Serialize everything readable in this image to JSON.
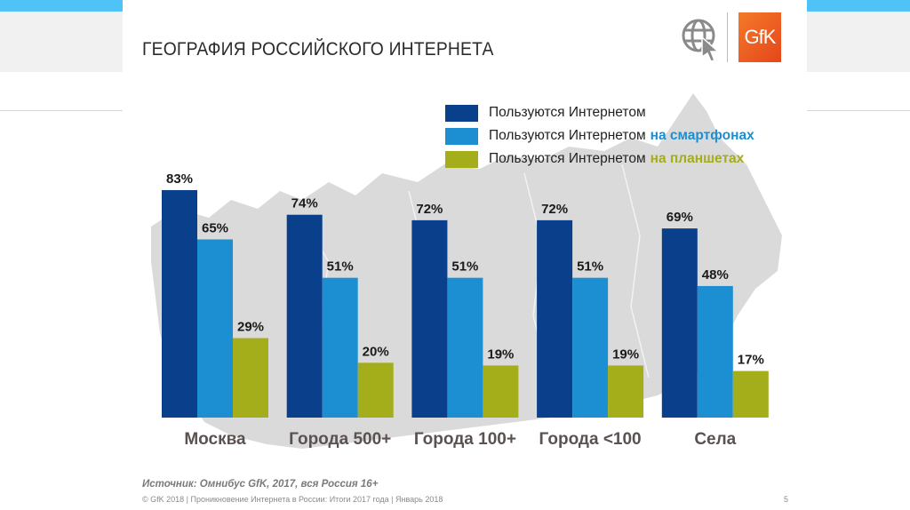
{
  "slide": {
    "title": "ГЕОГРАФИЯ РОССИЙСКОГО ИНТЕРНЕТА",
    "logo_text": "GfK",
    "source": "Источник: Омнибус GfK, 2017, вся Россия 16+",
    "footer": "© GfK 2018 | Проникновение Интернета в России: Итоги 2017 года | Январь 2018",
    "page_number": "5"
  },
  "colors": {
    "internet": "#0a3f8c",
    "smartphones": "#1b8fd2",
    "tablets": "#a4ad1a",
    "accent_bar": "#4fc3f7",
    "gfk_orange": "#ef6325"
  },
  "chart_data": {
    "type": "bar",
    "title": "ГЕОГРАФИЯ РОССИЙСКОГО ИНТЕРНЕТА",
    "xlabel": "",
    "ylabel": "",
    "ylim": [
      0,
      100
    ],
    "grid": false,
    "legend_position": "top-right",
    "categories": [
      "Москва",
      "Города 500+",
      "Города 100+",
      "Города <100",
      "Села"
    ],
    "series": [
      {
        "name": "Пользуются Интернетом",
        "highlight": "",
        "color": "#0a3f8c",
        "values": [
          83,
          74,
          72,
          72,
          69
        ]
      },
      {
        "name": "Пользуются Интернетом",
        "highlight": "на смартфонах",
        "color": "#1b8fd2",
        "values": [
          65,
          51,
          51,
          51,
          48
        ]
      },
      {
        "name": "Пользуются Интернетом",
        "highlight": "на планшетах",
        "color": "#a4ad1a",
        "values": [
          29,
          20,
          19,
          19,
          17
        ]
      }
    ],
    "value_suffix": "%"
  }
}
